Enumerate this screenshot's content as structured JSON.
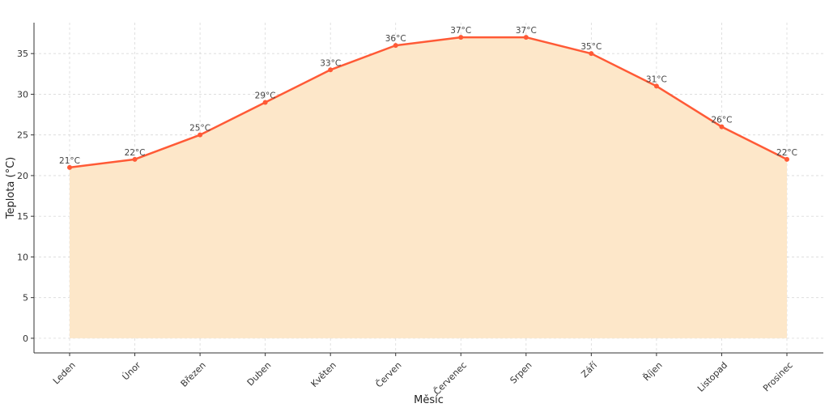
{
  "chart_data": {
    "type": "area",
    "xlabel": "Měsíc",
    "ylabel": "Teplota (°C)",
    "categories": [
      "Leden",
      "Únor",
      "Březen",
      "Duben",
      "Květen",
      "Červen",
      "Červenec",
      "Srpen",
      "Září",
      "Říjen",
      "Listopad",
      "Prosinec"
    ],
    "values": [
      21,
      22,
      25,
      29,
      33,
      36,
      37,
      37,
      35,
      31,
      26,
      22
    ],
    "data_labels": [
      "21°C",
      "22°C",
      "25°C",
      "29°C",
      "33°C",
      "36°C",
      "37°C",
      "37°C",
      "35°C",
      "31°C",
      "26°C",
      "22°C"
    ],
    "ylim": [
      -1.8,
      38.8
    ],
    "yticks": [
      0,
      5,
      10,
      15,
      20,
      25,
      30,
      35
    ],
    "grid": true,
    "line_color": "#ff5a36",
    "fill_color": "#fde7c9"
  }
}
